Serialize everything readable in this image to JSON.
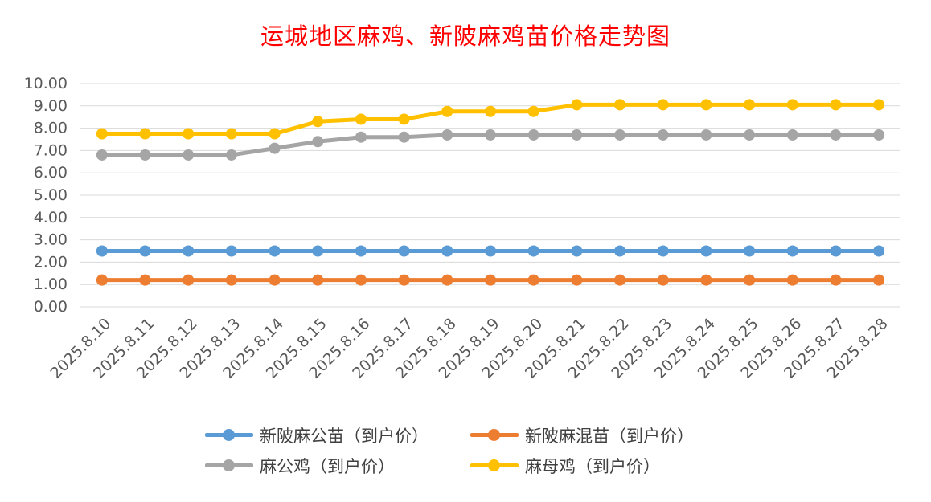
{
  "chart_data": {
    "type": "line",
    "title": "运城地区麻鸡、新陂麻鸡苗价格走势图",
    "categories": [
      "2025.8.10",
      "2025.8.11",
      "2025.8.12",
      "2025.8.13",
      "2025.8.14",
      "2025.8.15",
      "2025.8.16",
      "2025.8.17",
      "2025.8.18",
      "2025.8.19",
      "2025.8.20",
      "2025.8.21",
      "2025.8.22",
      "2025.8.23",
      "2025.8.24",
      "2025.8.25",
      "2025.8.26",
      "2025.8.27",
      "2025.8.28"
    ],
    "yticks": [
      "0.00",
      "1.00",
      "2.00",
      "3.00",
      "4.00",
      "5.00",
      "6.00",
      "7.00",
      "8.00",
      "9.00",
      "10.00"
    ],
    "ylim": [
      0,
      10
    ],
    "grid": true,
    "legend_position": "bottom",
    "series": [
      {
        "name": "新陂麻公苗（到户价）",
        "color": "#5b9bd5",
        "values": [
          2.5,
          2.5,
          2.5,
          2.5,
          2.5,
          2.5,
          2.5,
          2.5,
          2.5,
          2.5,
          2.5,
          2.5,
          2.5,
          2.5,
          2.5,
          2.5,
          2.5,
          2.5,
          2.5
        ]
      },
      {
        "name": "新陂麻混苗（到户价）",
        "color": "#ed7d31",
        "values": [
          1.2,
          1.2,
          1.2,
          1.2,
          1.2,
          1.2,
          1.2,
          1.2,
          1.2,
          1.2,
          1.2,
          1.2,
          1.2,
          1.2,
          1.2,
          1.2,
          1.2,
          1.2,
          1.2
        ]
      },
      {
        "name": "麻公鸡（到户价）",
        "color": "#a5a5a5",
        "values": [
          6.8,
          6.8,
          6.8,
          6.8,
          7.1,
          7.4,
          7.6,
          7.6,
          7.7,
          7.7,
          7.7,
          7.7,
          7.7,
          7.7,
          7.7,
          7.7,
          7.7,
          7.7,
          7.7
        ]
      },
      {
        "name": "麻母鸡（到户价）",
        "color": "#ffc000",
        "values": [
          7.75,
          7.75,
          7.75,
          7.75,
          7.75,
          8.3,
          8.4,
          8.4,
          8.75,
          8.75,
          8.75,
          9.05,
          9.05,
          9.05,
          9.05,
          9.05,
          9.05,
          9.05,
          9.05
        ]
      }
    ]
  }
}
